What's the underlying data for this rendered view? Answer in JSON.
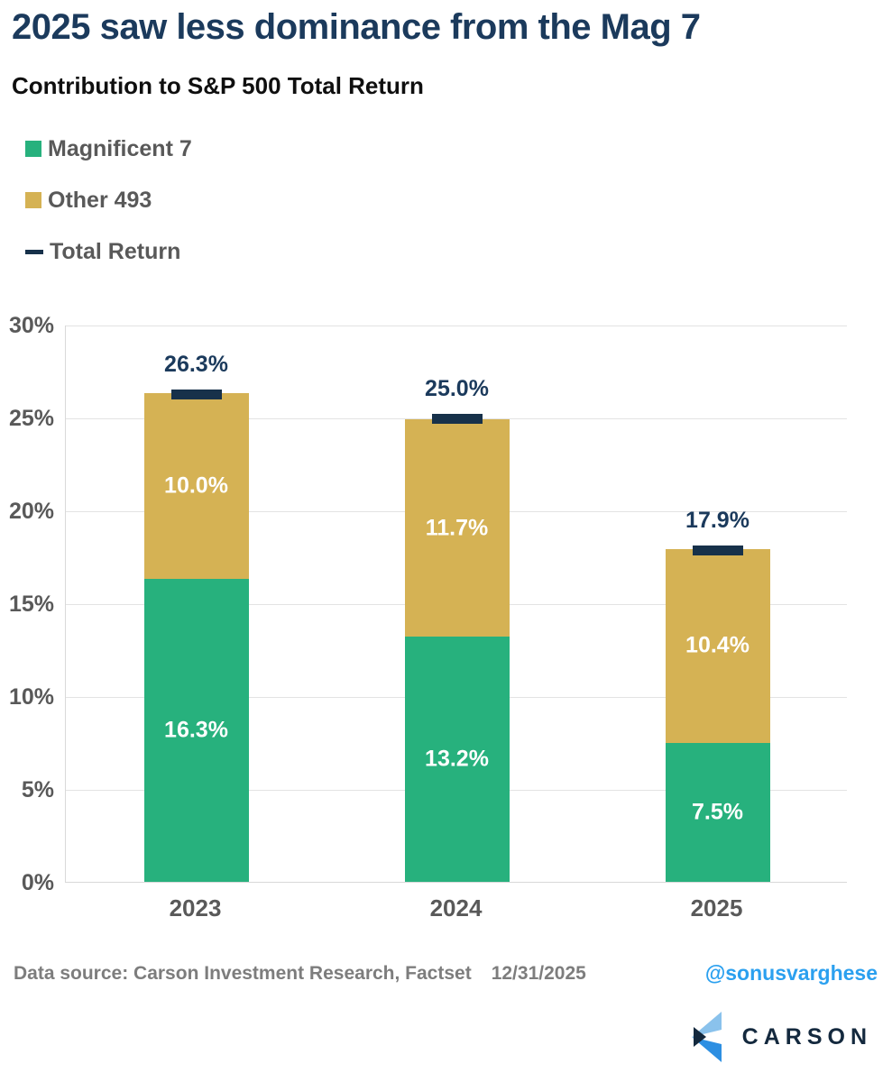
{
  "header": {
    "title": "2025 saw less dominance from the Mag 7",
    "subtitle": "Contribution to S&P 500 Total Return"
  },
  "chart_data": {
    "type": "bar",
    "stacked": true,
    "title": "2025 saw less dominance from the Mag 7",
    "subtitle": "Contribution to S&P 500 Total Return",
    "categories": [
      "2023",
      "2024",
      "2025"
    ],
    "series": [
      {
        "name": "Magnificent 7",
        "role": "stack",
        "values": [
          16.3,
          13.2,
          7.5
        ],
        "labels": [
          "16.3%",
          "13.2%",
          "7.5%"
        ],
        "color": "#27b17d"
      },
      {
        "name": "Other 493",
        "role": "stack",
        "values": [
          10.0,
          11.7,
          10.4
        ],
        "labels": [
          "10.0%",
          "11.7%",
          "10.4%"
        ],
        "color": "#d5b254"
      },
      {
        "name": "Total Return",
        "role": "marker",
        "values": [
          26.3,
          25.0,
          17.9
        ],
        "labels": [
          "26.3%",
          "25.0%",
          "17.9%"
        ],
        "color": "#17314a"
      }
    ],
    "ylim": [
      0,
      30
    ],
    "ytick_step": 5,
    "yticks": [
      "30%",
      "25%",
      "20%",
      "15%",
      "10%",
      "5%",
      "0%"
    ],
    "grid": true,
    "legend_position": "top-left"
  },
  "footer": {
    "source": "Data source: Carson Investment Research, Factset",
    "date": "12/31/2025",
    "handle": "@sonusvarghese",
    "logo_text": "CARSON"
  },
  "colors": {
    "title_navy": "#1b3a5c",
    "mag7_green": "#27b17d",
    "other_gold": "#d5b254",
    "marker_navy": "#17314a",
    "axis_gray": "#595959",
    "grid_gray": "#e3e3e3",
    "footer_gray": "#7d7d7d",
    "handle_blue": "#2ba0ef",
    "logo_navy": "#14293e",
    "logo_light_blue": "#8ac2ec",
    "logo_bright_blue": "#2d8fe2"
  }
}
